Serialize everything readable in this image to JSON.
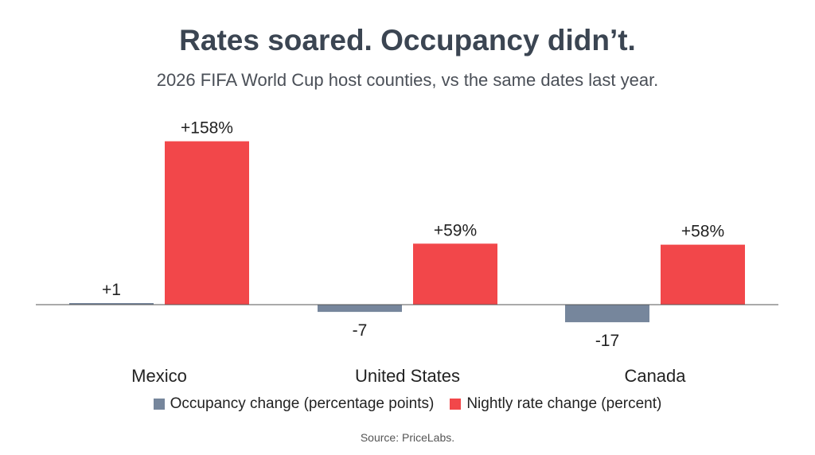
{
  "title": "Rates soared. Occupancy didn’t.",
  "subtitle": "2026 FIFA World Cup host counties, vs the same dates last year.",
  "source": "Source: PriceLabs.",
  "colors": {
    "occupancy": "#76869c",
    "rate": "#f2474a",
    "axis": "#555555",
    "text": "#222222"
  },
  "chart_data": {
    "type": "bar",
    "categories": [
      "Mexico",
      "United States",
      "Canada"
    ],
    "series": [
      {
        "name": "Occupancy change (percentage points)",
        "values": [
          1,
          -7,
          -17
        ],
        "labels": [
          "+1",
          "-7",
          "-17"
        ],
        "color": "#76869c"
      },
      {
        "name": "Nightly rate change (percent)",
        "values": [
          158,
          59,
          58
        ],
        "labels": [
          "+158%",
          "+59%",
          "+58%"
        ],
        "color": "#f2474a"
      }
    ],
    "ylim": [
      -17,
      158
    ],
    "grid": false,
    "legend": "bottom-center"
  }
}
